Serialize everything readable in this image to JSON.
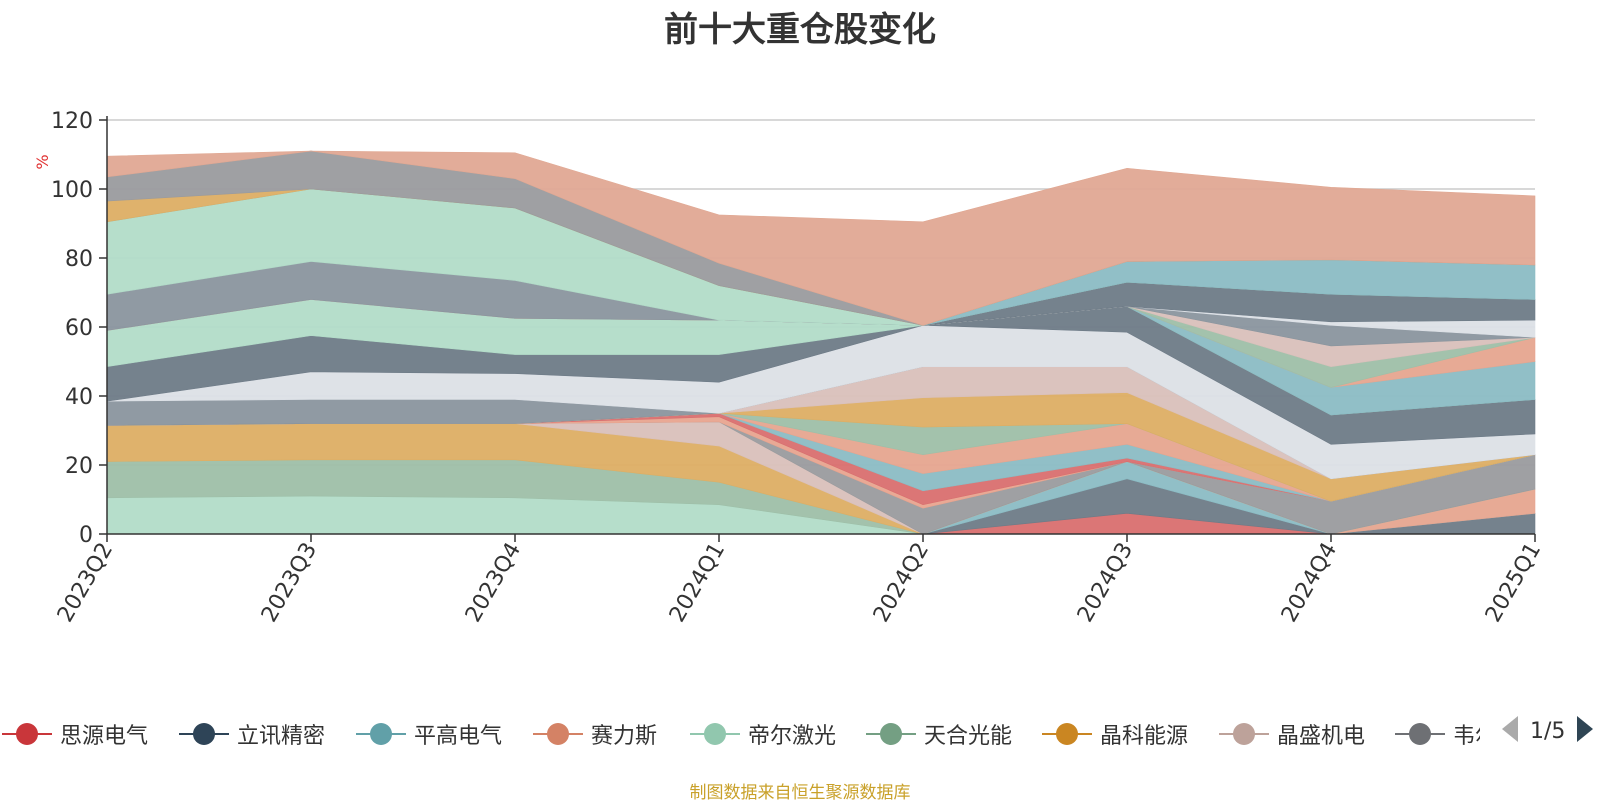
{
  "chart_data": {
    "type": "area",
    "title": "前十大重仓股变化",
    "ylabel": "%",
    "ylim": [
      0,
      120
    ],
    "yticks": [
      0,
      20,
      40,
      60,
      80,
      100,
      120
    ],
    "grid": true,
    "stacked": true,
    "categories": [
      "2023Q2",
      "2023Q3",
      "2023Q4",
      "2024Q1",
      "2024Q2",
      "2024Q3",
      "2024Q4",
      "2025Q1"
    ],
    "series": [
      {
        "name": "思源电气",
        "color": "#d96f6f",
        "values": [
          0,
          0,
          0,
          0,
          0,
          6,
          0,
          0
        ]
      },
      {
        "name": "立讯精密",
        "color": "#6e7b87",
        "values": [
          0,
          0,
          0,
          0,
          0,
          10,
          0,
          6
        ]
      },
      {
        "name": "平高电气",
        "color": "#8bbcc4",
        "values": [
          0,
          0,
          0,
          0,
          0,
          5,
          0,
          0
        ]
      },
      {
        "name": "赛力斯",
        "color": "#e6a58f",
        "values": [
          0,
          0,
          0,
          0,
          0,
          0,
          0,
          7
        ]
      },
      {
        "name": "帝尔激光",
        "color": "#b2dcc8",
        "values": [
          10.5,
          11,
          10.5,
          8.5,
          0,
          0,
          0,
          0
        ]
      },
      {
        "name": "天合光能",
        "color": "#9ebfa8",
        "values": [
          10.5,
          10.5,
          11,
          6.5,
          0,
          0,
          0,
          0
        ]
      },
      {
        "name": "晶科能源",
        "color": "#ddae64",
        "values": [
          10.5,
          10.5,
          10.5,
          10.5,
          0,
          0,
          0,
          0
        ]
      },
      {
        "name": "晶盛机电",
        "color": "#d9c0bb",
        "values": [
          0,
          0,
          0,
          7,
          0,
          0,
          0,
          0
        ]
      },
      {
        "name": "韦尔股份",
        "color": "#9a9b9e",
        "values": [
          0,
          0,
          0,
          0,
          7.5,
          0,
          9.5,
          10
        ]
      },
      {
        "name": "",
        "color": "#e8a48f",
        "values": [
          0,
          0,
          0,
          1.5,
          1,
          0,
          0,
          0
        ]
      },
      {
        "name": "",
        "color": "#d96f6f",
        "values": [
          0,
          0,
          0,
          1,
          4,
          1,
          0,
          0
        ]
      },
      {
        "name": "",
        "color": "#8bbcc4",
        "values": [
          0,
          0,
          0,
          0,
          5,
          4,
          0,
          0
        ]
      },
      {
        "name": "",
        "color": "#e6a58f",
        "values": [
          0,
          0,
          0,
          0,
          5.5,
          6,
          0,
          0
        ]
      },
      {
        "name": "",
        "color": "#9ebfa8",
        "values": [
          0,
          0,
          0,
          0,
          8,
          0,
          0,
          0
        ]
      },
      {
        "name": "",
        "color": "#ddae64",
        "values": [
          0,
          0,
          0,
          0,
          8.5,
          9,
          6.5,
          0
        ]
      },
      {
        "name": "",
        "color": "#d9c0bb",
        "values": [
          0,
          0,
          0,
          0,
          9,
          7.5,
          0,
          0
        ]
      },
      {
        "name": "",
        "color": "#8a959e",
        "values": [
          7,
          7,
          7,
          0,
          0,
          0,
          0,
          0
        ]
      },
      {
        "name": "",
        "color": "#dce0e6",
        "values": [
          0,
          8,
          7.5,
          9,
          12,
          10,
          10,
          6
        ]
      },
      {
        "name": "",
        "color": "#6e7b87",
        "values": [
          10,
          10.5,
          5.5,
          8,
          0,
          7.5,
          8.5,
          10
        ]
      },
      {
        "name": "",
        "color": "#b2dcc8",
        "values": [
          10.5,
          10.5,
          10.5,
          10,
          0,
          0,
          0,
          0
        ]
      },
      {
        "name": "",
        "color": "#8bbcc4",
        "values": [
          0,
          0,
          0,
          0,
          0,
          0,
          8,
          11
        ]
      },
      {
        "name": "",
        "color": "#e6a58f",
        "values": [
          0,
          0,
          0,
          0,
          0,
          0,
          0,
          7
        ]
      },
      {
        "name": "",
        "color": "#9ebfa8",
        "values": [
          0,
          0,
          0,
          0,
          0,
          0,
          6,
          0
        ]
      },
      {
        "name": "",
        "color": "#d9c0bb",
        "values": [
          0,
          0,
          0,
          0,
          0,
          0,
          6,
          0
        ]
      },
      {
        "name": "",
        "color": "#8a959e",
        "values": [
          10.5,
          11,
          11,
          0,
          0,
          0,
          6,
          0
        ]
      },
      {
        "name": "",
        "color": "#dce0e6",
        "values": [
          0,
          0,
          0,
          0,
          0,
          0,
          1,
          5
        ]
      },
      {
        "name": "",
        "color": "#6e7b87",
        "values": [
          0,
          0,
          0,
          0,
          0,
          7,
          8,
          6
        ]
      },
      {
        "name": "",
        "color": "#b2dcc8",
        "values": [
          21,
          21,
          21,
          10,
          0,
          0,
          0,
          0
        ]
      },
      {
        "name": "",
        "color": "#8bbcc4",
        "values": [
          0,
          0,
          0,
          0,
          0,
          6,
          10,
          10
        ]
      },
      {
        "name": "",
        "color": "#ddae64",
        "values": [
          6,
          0,
          0,
          0,
          0,
          0,
          0,
          0
        ]
      },
      {
        "name": "",
        "color": "#9a9b9e",
        "values": [
          7,
          11,
          8.5,
          6.5,
          0,
          0,
          0,
          0
        ]
      },
      {
        "name": "",
        "color": "#e0a893",
        "values": [
          6,
          0,
          7.5,
          14,
          30,
          27,
          21,
          20
        ]
      }
    ],
    "legend_position": "bottom"
  },
  "legend": {
    "items": [
      {
        "name": "思源电气",
        "color": "#c9363a"
      },
      {
        "name": "立讯精密",
        "color": "#2e4457"
      },
      {
        "name": "平高电气",
        "color": "#61a0a8"
      },
      {
        "name": "赛力斯",
        "color": "#d48265"
      },
      {
        "name": "帝尔激光",
        "color": "#91c7ae"
      },
      {
        "name": "天合光能",
        "color": "#749f83"
      },
      {
        "name": "晶科能源",
        "color": "#ca8622"
      },
      {
        "name": "晶盛机电",
        "color": "#bda29a"
      },
      {
        "name": "韦尔股份",
        "color": "#6e7074"
      }
    ],
    "page": "1/5"
  },
  "source_note": "制图数据来自恒生聚源数据库"
}
